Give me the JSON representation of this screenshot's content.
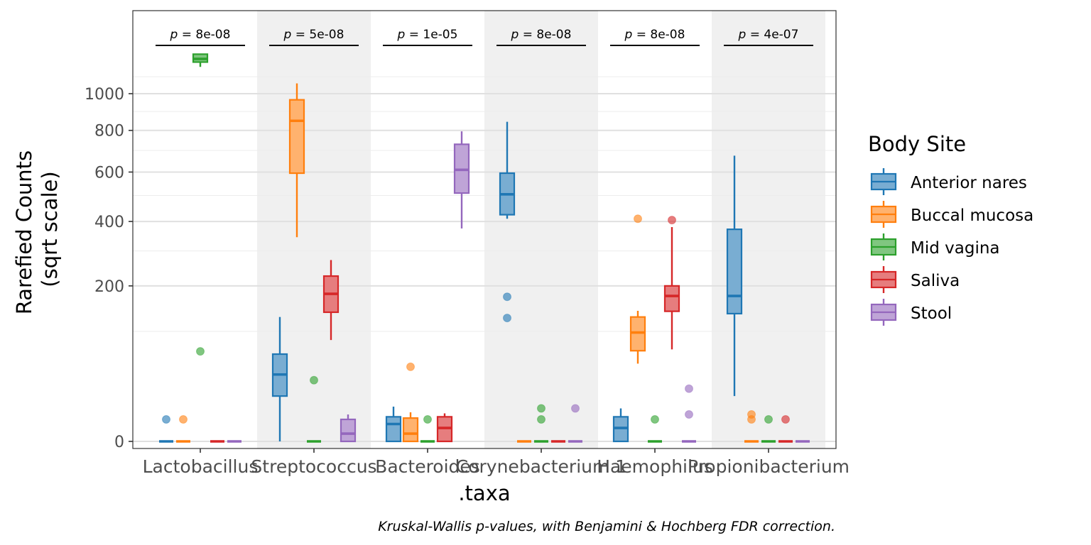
{
  "chart_data": {
    "type": "box",
    "xlabel": ".taxa",
    "ylabel_lines": [
      "Rarefied Counts",
      "(sqrt scale)"
    ],
    "y_scale": "sqrt",
    "y_ticks": [
      0,
      200,
      400,
      600,
      800,
      1000
    ],
    "ylim": [
      0,
      1500
    ],
    "grid": true,
    "alternating_background": true,
    "legend_title": "Body Site",
    "legend_position": "right",
    "caption": "Kruskal-Wallis p-values, with Benjamini & Hochberg FDR correction.",
    "groups": [
      {
        "name": "Anterior nares",
        "color": "#1f77b4"
      },
      {
        "name": "Buccal mucosa",
        "color": "#ff7f0e"
      },
      {
        "name": "Mid vagina",
        "color": "#2ca02c"
      },
      {
        "name": "Saliva",
        "color": "#d62728"
      },
      {
        "name": "Stool",
        "color": "#9467bd"
      }
    ],
    "categories": [
      {
        "label": "Lactobacillus",
        "p_value": "8e-08",
        "boxes": [
          {
            "q1": 0,
            "median": 0,
            "q3": 0,
            "lo": 0,
            "hi": 0,
            "outliers": [
              4
            ]
          },
          {
            "q1": 0,
            "median": 0,
            "q3": 0,
            "lo": 0,
            "hi": 0,
            "outliers": [
              4
            ]
          },
          {
            "q1": 1190,
            "median": 1210,
            "q3": 1240,
            "lo": 1160,
            "hi": 1240,
            "outliers": [
              67
            ]
          },
          {
            "q1": 0,
            "median": 0,
            "q3": 0,
            "lo": 0,
            "hi": 0,
            "outliers": []
          },
          {
            "q1": 0,
            "median": 0,
            "q3": 0,
            "lo": 0,
            "hi": 0,
            "outliers": []
          }
        ]
      },
      {
        "label": "Streptococcus",
        "p_value": "5e-08",
        "boxes": [
          {
            "q1": 17,
            "median": 37,
            "q3": 63,
            "lo": 0,
            "hi": 128,
            "outliers": []
          },
          {
            "q1": 595,
            "median": 850,
            "q3": 965,
            "lo": 345,
            "hi": 1060,
            "outliers": []
          },
          {
            "q1": 0,
            "median": 0,
            "q3": 0,
            "lo": 0,
            "hi": 0,
            "outliers": [
              31
            ]
          },
          {
            "q1": 138,
            "median": 180,
            "q3": 226,
            "lo": 85,
            "hi": 272,
            "outliers": []
          },
          {
            "q1": 0,
            "median": 0.5,
            "q3": 4,
            "lo": 0,
            "hi": 6,
            "outliers": []
          }
        ]
      },
      {
        "label": "Bacteroides",
        "p_value": "1e-05",
        "boxes": [
          {
            "q1": 0,
            "median": 2.5,
            "q3": 5,
            "lo": 0,
            "hi": 10,
            "outliers": []
          },
          {
            "q1": 0,
            "median": 0.5,
            "q3": 4.5,
            "lo": 0,
            "hi": 7,
            "outliers": [
              46
            ]
          },
          {
            "q1": 0,
            "median": 0,
            "q3": 0,
            "lo": 0,
            "hi": 0,
            "outliers": [
              4
            ]
          },
          {
            "q1": 0,
            "median": 1.5,
            "q3": 5,
            "lo": 0,
            "hi": 6.5,
            "outliers": []
          },
          {
            "q1": 510,
            "median": 610,
            "q3": 730,
            "lo": 375,
            "hi": 795,
            "outliers": []
          }
        ]
      },
      {
        "label": "Corynebacterium 1",
        "p_value": "8e-08",
        "boxes": [
          {
            "q1": 425,
            "median": 505,
            "q3": 595,
            "lo": 410,
            "hi": 845,
            "outliers": [
              173,
              126
            ]
          },
          {
            "q1": 0,
            "median": 0,
            "q3": 0,
            "lo": 0,
            "hi": 0,
            "outliers": []
          },
          {
            "q1": 0,
            "median": 0,
            "q3": 0,
            "lo": 0,
            "hi": 0,
            "outliers": [
              9,
              4
            ]
          },
          {
            "q1": 0,
            "median": 0,
            "q3": 0,
            "lo": 0,
            "hi": 0,
            "outliers": []
          },
          {
            "q1": 0,
            "median": 0,
            "q3": 0,
            "lo": 0,
            "hi": 0,
            "outliers": [
              9
            ]
          }
        ]
      },
      {
        "label": "Haemophilus",
        "p_value": "8e-08",
        "boxes": [
          {
            "q1": 0,
            "median": 1.5,
            "q3": 5,
            "lo": 0,
            "hi": 9,
            "outliers": []
          },
          {
            "q1": 68,
            "median": 98,
            "q3": 128,
            "lo": 50,
            "hi": 141,
            "outliers": [
              410
            ]
          },
          {
            "q1": 0,
            "median": 0,
            "q3": 0,
            "lo": 0,
            "hi": 0,
            "outliers": [
              4
            ]
          },
          {
            "q1": 140,
            "median": 175,
            "q3": 200,
            "lo": 70,
            "hi": 380,
            "outliers": [
              405
            ]
          },
          {
            "q1": 0,
            "median": 0,
            "q3": 0,
            "lo": 0,
            "hi": 0,
            "outliers": [
              23,
              6
            ]
          }
        ]
      },
      {
        "label": "Propionibacterium",
        "p_value": "4e-07",
        "boxes": [
          {
            "q1": 135,
            "median": 175,
            "q3": 372,
            "lo": 17,
            "hi": 675,
            "outliers": []
          },
          {
            "q1": 0,
            "median": 0,
            "q3": 0,
            "lo": 0,
            "hi": 0,
            "outliers": [
              6,
              4
            ]
          },
          {
            "q1": 0,
            "median": 0,
            "q3": 0,
            "lo": 0,
            "hi": 0,
            "outliers": [
              4
            ]
          },
          {
            "q1": 0,
            "median": 0,
            "q3": 0,
            "lo": 0,
            "hi": 0,
            "outliers": [
              4
            ]
          },
          {
            "q1": 0,
            "median": 0,
            "q3": 0,
            "lo": 0,
            "hi": 0,
            "outliers": []
          }
        ]
      }
    ]
  }
}
